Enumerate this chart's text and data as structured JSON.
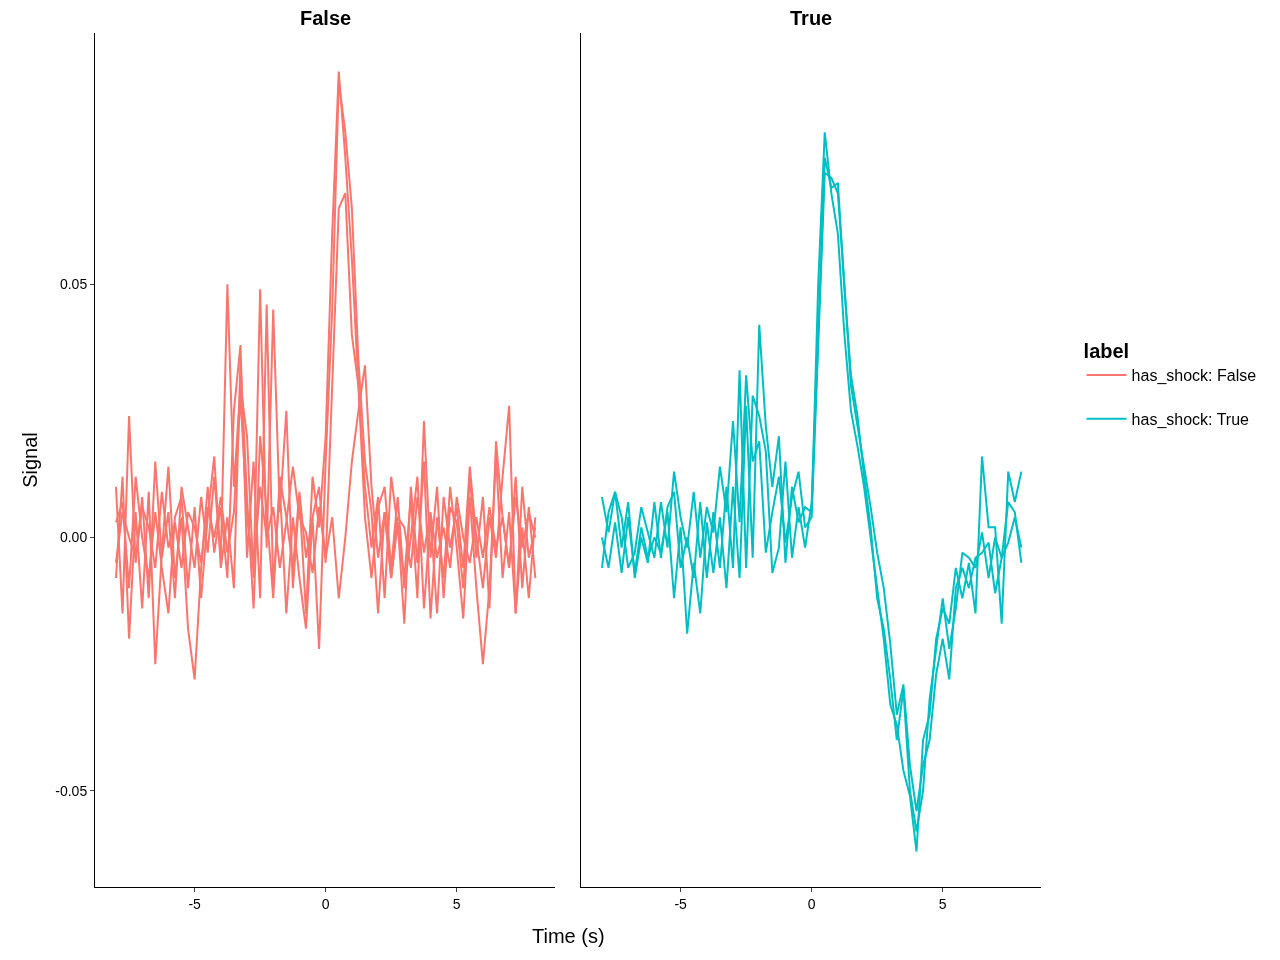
{
  "chart_data": [
    {
      "type": "line",
      "title": "False",
      "xlabel": "Time (s)",
      "ylabel": "Signal",
      "legend": "right",
      "legend_title": "label",
      "grid": false,
      "x": [
        -8,
        -7.75,
        -7.5,
        -7.25,
        -7,
        -6.75,
        -6.5,
        -6.25,
        -6,
        -5.75,
        -5.5,
        -5.25,
        -5,
        -4.75,
        -4.5,
        -4.25,
        -4,
        -3.75,
        -3.5,
        -3.25,
        -3,
        -2.75,
        -2.5,
        -2.25,
        -2,
        -1.75,
        -1.5,
        -1.25,
        -1,
        -0.75,
        -0.5,
        -0.25,
        0,
        0.25,
        0.5,
        0.75,
        1,
        1.25,
        1.5,
        1.75,
        2,
        2.25,
        2.5,
        2.75,
        3,
        3.25,
        3.5,
        3.75,
        4,
        4.25,
        4.5,
        4.75,
        5,
        5.25,
        5.5,
        5.75,
        6,
        6.25,
        6.5,
        6.75,
        7,
        7.25,
        7.5,
        7.75,
        8
      ],
      "xlim": [
        -8.8,
        8.75
      ],
      "xticks": [
        -5,
        0,
        5
      ],
      "ylim": [
        -0.069,
        0.0996
      ],
      "yticks": [
        {
          "value": -0.05,
          "label": "-0.05"
        },
        {
          "value": 0,
          "label": "0.00"
        },
        {
          "value": 0.05,
          "label": "0.05"
        }
      ],
      "series": [
        {
          "name": "has_shock: False",
          "color": "#f8766d",
          "values": [
            0.01,
            -0.015,
            0.024,
            -0.005,
            0.008,
            -0.012,
            0.015,
            -0.004,
            0.005,
            -0.012,
            0.01,
            0.002,
            -0.006,
            0.008,
            -0.003,
            0.012,
            -0.004,
            0.05,
            0.01,
            0.03,
            0.02,
            -0.008,
            0.049,
            -0.002,
            0.045,
            0.005,
            0.025,
            -0.01,
            0.008,
            -0.015,
            0.012,
            0.002,
            0.02,
            0.06,
            0.092,
            0.075,
            0.055,
            0.03,
            0.01,
            -0.002,
            0.008,
            -0.012,
            0.012,
            0.002,
            -0.008,
            0.008,
            -0.012,
            0.023,
            -0.004,
            0.01,
            -0.012,
            0.006,
            0.003,
            -0.01,
            0.012,
            -0.004,
            0.008,
            -0.014,
            0.019,
            0.004,
            -0.006,
            0.012,
            -0.01,
            0.006,
            -0.008
          ]
        },
        {
          "color": "#f8766d",
          "values": [
            -0.008,
            0.012,
            -0.02,
            0.005,
            -0.014,
            0.009,
            -0.025,
            -0.003,
            0.014,
            -0.008,
            0.004,
            -0.018,
            -0.028,
            -0.006,
            0.01,
            -0.003,
            0.006,
            -0.008,
            0.025,
            0.038,
            -0.004,
            0.015,
            -0.012,
            0.046,
            -0.01,
            0.01,
            -0.015,
            0.004,
            -0.008,
            -0.018,
            0.004,
            -0.022,
            0.015,
            0.045,
            0.09,
            0.08,
            0.065,
            0.035,
            0.015,
            0.005,
            -0.015,
            0.005,
            -0.008,
            0.003,
            -0.017,
            0.01,
            -0.005,
            0.015,
            -0.016,
            0.004,
            -0.008,
            0.01,
            -0.002,
            -0.016,
            0.008,
            -0.01,
            -0.025,
            -0.01,
            0.016,
            -0.008,
            0.005,
            -0.015,
            0.002,
            -0.012,
            0.004
          ]
        },
        {
          "color": "#f8766d",
          "values": [
            0.003,
            0.007,
            -0.01,
            0.012,
            0.0,
            -0.008,
            0.005,
            -0.006,
            -0.015,
            0.004,
            0.008,
            -0.01,
            0.006,
            -0.012,
            0.004,
            0.016,
            -0.006,
            0.004,
            -0.01,
            0.035,
            0.008,
            -0.014,
            0.02,
            0.005,
            -0.012,
            0.012,
            0.004,
            -0.006,
            0.009,
            -0.004,
            0.004,
            0.01,
            -0.005,
            0.03,
            0.065,
            0.068,
            0.04,
            0.03,
            0.004,
            -0.008,
            0.006,
            0.01,
            -0.006,
            0.008,
            -0.01,
            0.0,
            0.012,
            -0.014,
            0.004,
            -0.015,
            0.008,
            -0.002,
            0.006,
            -0.006,
            0.014,
            0.0,
            -0.01,
            0.004,
            -0.004,
            0.012,
            0.026,
            -0.015,
            0.01,
            -0.004,
            0.002
          ]
        },
        {
          "color": "#f8766d",
          "values": [
            -0.005,
            0.005,
            0.0,
            -0.004,
            0.006,
            0.002,
            -0.006,
            0.009,
            -0.002,
            0.003,
            -0.006,
            0.005,
            0.002,
            -0.005,
            0.006,
            0.0,
            0.008,
            -0.003,
            0.005,
            0.028,
            0.004,
            -0.006,
            0.01,
            0.0,
            0.006,
            -0.006,
            0.003,
            0.014,
            0.004,
            0.001,
            -0.007,
            0.006,
            -0.004,
            0.004,
            -0.012,
            0.0,
            0.015,
            0.025,
            0.034,
            0.01,
            -0.004,
            0.005,
            -0.008,
            0.004,
            0.002,
            -0.006,
            0.008,
            -0.003,
            0.005,
            -0.004,
            0.002,
            -0.006,
            0.008,
            0.0,
            -0.005,
            0.004,
            -0.004,
            0.006,
            -0.002,
            0.004,
            -0.006,
            0.008,
            -0.002,
            0.005,
            0.0
          ]
        }
      ]
    },
    {
      "type": "line",
      "title": "True",
      "legend": "right",
      "grid": false,
      "tick_labels": "x",
      "x": [
        -8,
        -7.75,
        -7.5,
        -7.25,
        -7,
        -6.75,
        -6.5,
        -6.25,
        -6,
        -5.75,
        -5.5,
        -5.25,
        -5,
        -4.75,
        -4.5,
        -4.25,
        -4,
        -3.75,
        -3.5,
        -3.25,
        -3,
        -2.75,
        -2.5,
        -2.25,
        -2,
        -1.75,
        -1.5,
        -1.25,
        -1,
        -0.75,
        -0.5,
        -0.25,
        0,
        0.25,
        0.5,
        0.75,
        1,
        1.25,
        1.5,
        1.75,
        2,
        2.25,
        2.5,
        2.75,
        3,
        3.25,
        3.5,
        3.75,
        4,
        4.25,
        4.5,
        4.75,
        5,
        5.25,
        5.5,
        5.75,
        6,
        6.25,
        6.5,
        6.75,
        7,
        7.25,
        7.5,
        7.75,
        8
      ],
      "xlim": [
        -8.8,
        8.75
      ],
      "xticks": [
        -5,
        0,
        5
      ],
      "ylim": [
        -0.069,
        0.0996
      ],
      "series": [
        {
          "name": "has_shock: True",
          "color": "#00bfc4",
          "values": [
            0.008,
            0.001,
            0.009,
            0.004,
            -0.006,
            -0.003,
            0.006,
            0.001,
            -0.004,
            0.007,
            -0.002,
            0.013,
            0.004,
            -0.002,
            0.009,
            -0.004,
            0.006,
            0.001,
            0.014,
            0.005,
            0.023,
            0.003,
            0.032,
            0.015,
            0.019,
            -0.003,
            0.005,
            0.012,
            -0.001,
            0.008,
            0.013,
            0.002,
            0.004,
            0.038,
            0.072,
            0.071,
            0.068,
            0.05,
            0.03,
            0.022,
            0.014,
            0.006,
            -0.003,
            -0.01,
            -0.021,
            -0.035,
            -0.029,
            -0.045,
            -0.054,
            -0.045,
            -0.04,
            -0.027,
            -0.02,
            -0.028,
            -0.01,
            -0.006,
            -0.01,
            -0.004,
            -0.003,
            -0.001,
            -0.011,
            -0.004,
            0.007,
            0.005,
            -0.005
          ]
        },
        {
          "color": "#00bfc4",
          "values": [
            0.0,
            -0.006,
            0.003,
            -0.007,
            0.004,
            -0.007,
            0.002,
            -0.004,
            0.0,
            -0.003,
            0.005,
            -0.012,
            0.002,
            -0.019,
            -0.005,
            -0.015,
            0.003,
            -0.007,
            0.004,
            -0.01,
            0.01,
            -0.008,
            0.026,
            -0.004,
            0.042,
            0.022,
            0.01,
            0.02,
            -0.005,
            0.01,
            0.003,
            0.006,
            0.005,
            0.05,
            0.08,
            0.068,
            0.06,
            0.04,
            0.025,
            0.018,
            0.01,
            0.0,
            -0.01,
            -0.02,
            -0.033,
            -0.037,
            -0.046,
            -0.051,
            -0.062,
            -0.04,
            -0.035,
            -0.02,
            -0.014,
            -0.017,
            -0.006,
            -0.012,
            -0.005,
            -0.015,
            0.016,
            0.002,
            0.002,
            -0.017,
            0.013,
            0.007,
            0.013
          ]
        },
        {
          "color": "#00bfc4",
          "values": [
            -0.006,
            0.005,
            0.009,
            -0.002,
            0.007,
            -0.008,
            0.0,
            -0.005,
            0.007,
            -0.004,
            0.006,
            0.009,
            -0.006,
            0.0,
            -0.008,
            0.007,
            -0.008,
            0.005,
            -0.006,
            0.01,
            -0.006,
            0.033,
            -0.006,
            0.028,
            0.024,
            0.017,
            -0.007,
            -0.002,
            0.015,
            -0.004,
            0.006,
            -0.002,
            0.007,
            0.04,
            0.075,
            0.069,
            0.07,
            0.049,
            0.032,
            0.024,
            0.012,
            0.002,
            -0.012,
            -0.018,
            -0.028,
            -0.04,
            -0.03,
            -0.05,
            -0.058,
            -0.05,
            -0.032,
            -0.022,
            -0.012,
            -0.022,
            -0.014,
            -0.003,
            -0.004,
            -0.006,
            0.001,
            -0.008,
            0.0,
            -0.004,
            -0.001,
            0.004,
            -0.002
          ]
        }
      ]
    }
  ]
}
